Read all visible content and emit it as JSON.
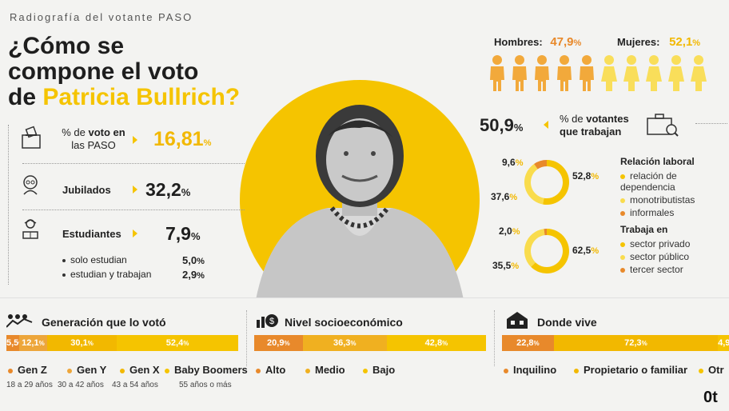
{
  "header": {
    "kicker": "Radiografía del votante PASO",
    "title_line1": "¿Cómo se",
    "title_line2": "compone el voto",
    "title_line3_pre": "de ",
    "title_line3_name": "Patricia Bullrich?"
  },
  "left_stats": {
    "voto_label_1": "% de ",
    "voto_label_bold": "voto en",
    "voto_label_2": "las PASO",
    "voto_value": "16,81",
    "voto_unit": "%",
    "jubilados_label": "Jubilados",
    "jubilados_value": "32,2",
    "jubilados_unit": "%",
    "estudiantes_label": "Estudiantes",
    "estudiantes_value": "7,9",
    "estudiantes_unit": "%",
    "sub1_label": "solo estudian",
    "sub1_value": "5,0",
    "sub1_unit": "%",
    "sub2_label": "estudian y trabajan",
    "sub2_value": "2,9",
    "sub2_unit": "%"
  },
  "gender": {
    "hombres_label": "Hombres:",
    "hombres_value": "47,9",
    "mujeres_label": "Mujeres:",
    "mujeres_value": "52,1",
    "unit": "%",
    "male_color": "#f2a93b",
    "female_color": "#f9de5a"
  },
  "trabajan": {
    "value": "50,9",
    "unit": "%",
    "label_1": "% de ",
    "label_bold1": "votantes",
    "label_bold2": "que trabajan"
  },
  "relacion": {
    "title": "Relación laboral",
    "legend": [
      "relación de dependencia",
      "monotributistas",
      "informales"
    ],
    "values_text": [
      "52,8",
      "37,6",
      "9,6"
    ]
  },
  "trabaja_en": {
    "title": "Trabaja en",
    "legend": [
      "sector privado",
      "sector público",
      "tercer sector"
    ],
    "values_text": [
      "62,5",
      "35,5",
      "2,0"
    ]
  },
  "colors": {
    "yellow": "#f5c400",
    "light_yellow": "#f9dc4d",
    "orange": "#e8892b",
    "gold": "#f2b800"
  },
  "sections": {
    "generacion_title": "Generación que lo votó",
    "nivel_title": "Nivel socioeconómico",
    "donde_title": "Donde vive"
  },
  "chart_data": [
    {
      "type": "pie",
      "title": "Relación laboral",
      "labels": [
        "relación de dependencia",
        "monotributistas",
        "informales"
      ],
      "values": [
        52.8,
        37.6,
        9.6
      ],
      "colors": [
        "#f5c400",
        "#f9dc4d",
        "#e8892b"
      ]
    },
    {
      "type": "pie",
      "title": "Trabaja en",
      "labels": [
        "sector privado",
        "sector público",
        "tercer sector"
      ],
      "values": [
        62.5,
        35.5,
        2.0
      ],
      "colors": [
        "#f5c400",
        "#f9dc4d",
        "#e8892b"
      ]
    },
    {
      "type": "bar",
      "title": "Generación que lo votó",
      "categories": [
        "Gen Z",
        "Gen Y",
        "Gen X",
        "Baby Boomers"
      ],
      "values": [
        5.5,
        12.1,
        30.1,
        52.4
      ],
      "values_text": [
        "5,5",
        "12,1",
        "30,1",
        "52,4"
      ],
      "ages": [
        "18 a 29 años",
        "30 a 42 años",
        "43 a 54 años",
        "55 años o más"
      ],
      "colors": [
        "#e8892b",
        "#eda63a",
        "#f2b800",
        "#f5c400"
      ]
    },
    {
      "type": "bar",
      "title": "Nivel socioeconómico",
      "categories": [
        "Alto",
        "Medio",
        "Bajo"
      ],
      "values": [
        20.9,
        36.3,
        42.8
      ],
      "values_text": [
        "20,9",
        "36,3",
        "42,8"
      ],
      "colors": [
        "#e8892b",
        "#f0b020",
        "#f5c400"
      ]
    },
    {
      "type": "bar",
      "title": "Donde vive",
      "categories": [
        "Inquilino",
        "Propietario o familiar",
        "Otr"
      ],
      "values": [
        22.8,
        72.3,
        4.9
      ],
      "values_text": [
        "22,8",
        "72,3",
        "4,9"
      ],
      "colors": [
        "#e8892b",
        "#f2b800",
        "#f5c400"
      ]
    }
  ],
  "footer_logo": "0t"
}
